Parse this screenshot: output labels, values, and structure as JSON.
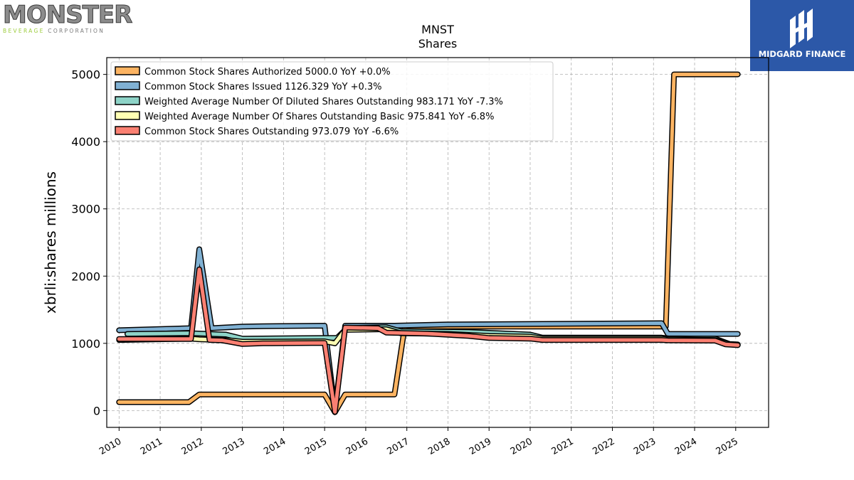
{
  "logos": {
    "left": {
      "word": "MONSTER",
      "sub_accent": "BEVERAGE",
      "sub_rest": " CORPORATION"
    },
    "right": {
      "name": "MIDGARD FINANCE",
      "color": "#2c58a8"
    }
  },
  "chart_data": {
    "type": "line",
    "title": "MNST",
    "subtitle": "Shares",
    "xlabel": "",
    "ylabel": "xbrli:shares millions",
    "xlim": [
      2009.7,
      2025.8
    ],
    "ylim": [
      -250,
      5250
    ],
    "yticks": [
      0,
      1000,
      2000,
      3000,
      4000,
      5000
    ],
    "xticks": [
      "2010",
      "2011",
      "2012",
      "2013",
      "2014",
      "2015",
      "2016",
      "2017",
      "2018",
      "2019",
      "2020",
      "2021",
      "2022",
      "2023",
      "2024",
      "2025"
    ],
    "grid": true,
    "legend_position": "top-left",
    "series": [
      {
        "name": "Common Stock Shares Authorized",
        "legend": "Common Stock Shares Authorized  5000.0 YoY +0.0%",
        "color": "#fdb462",
        "points": [
          [
            2010.0,
            125
          ],
          [
            2011.7,
            125
          ],
          [
            2011.95,
            240
          ],
          [
            2015.0,
            240
          ],
          [
            2015.25,
            -25
          ],
          [
            2015.5,
            240
          ],
          [
            2016.7,
            240
          ],
          [
            2016.95,
            1250
          ],
          [
            2023.2,
            1250
          ],
          [
            2023.3,
            1250
          ],
          [
            2023.5,
            5000
          ],
          [
            2025.05,
            5000
          ]
        ]
      },
      {
        "name": "Common Stock Shares Issued",
        "legend": "Common Stock Shares Issued  1126.329 YoY +0.3%",
        "color": "#80b1d3",
        "points": [
          [
            2010.0,
            1195
          ],
          [
            2011.75,
            1225
          ],
          [
            2011.95,
            2400
          ],
          [
            2012.25,
            1225
          ],
          [
            2013.0,
            1250
          ],
          [
            2013.5,
            1255
          ],
          [
            2015.0,
            1262
          ],
          [
            2015.25,
            0
          ],
          [
            2015.5,
            1262
          ],
          [
            2016.7,
            1262
          ],
          [
            2018.0,
            1280
          ],
          [
            2023.2,
            1300
          ],
          [
            2023.35,
            1140
          ],
          [
            2025.05,
            1140
          ]
        ]
      },
      {
        "name": "Weighted Average Number Of Diluted Shares Outstanding",
        "legend": "Weighted Average Number Of Diluted Shares Outstanding  983.171 YoY -7.3%",
        "color": "#8dd3c7",
        "points": [
          [
            2010.2,
            1140
          ],
          [
            2011.75,
            1150
          ],
          [
            2012.2,
            1140
          ],
          [
            2012.6,
            1130
          ],
          [
            2013.0,
            1070
          ],
          [
            2015.0,
            1080
          ],
          [
            2015.3,
            1080
          ],
          [
            2015.55,
            1230
          ],
          [
            2016.5,
            1240
          ],
          [
            2016.85,
            1180
          ],
          [
            2017.5,
            1175
          ],
          [
            2018.5,
            1170
          ],
          [
            2020.0,
            1130
          ],
          [
            2020.3,
            1085
          ],
          [
            2023.2,
            1085
          ],
          [
            2023.35,
            1075
          ],
          [
            2024.5,
            1070
          ],
          [
            2024.85,
            990
          ],
          [
            2025.05,
            983
          ]
        ]
      },
      {
        "name": "Weighted Average Number Of Shares Outstanding Basic",
        "legend": "Weighted Average Number Of Shares Outstanding Basic  975.841 YoY -6.8%",
        "color": "#ffffb3",
        "points": [
          [
            2010.0,
            1050
          ],
          [
            2011.75,
            1070
          ],
          [
            2011.95,
            1060
          ],
          [
            2012.2,
            1055
          ],
          [
            2012.6,
            1050
          ],
          [
            2013.0,
            1025
          ],
          [
            2015.0,
            1030
          ],
          [
            2015.25,
            1000
          ],
          [
            2015.5,
            1200
          ],
          [
            2016.5,
            1210
          ],
          [
            2016.85,
            1150
          ],
          [
            2018.0,
            1140
          ],
          [
            2019.0,
            1110
          ],
          [
            2020.0,
            1100
          ],
          [
            2020.3,
            1070
          ],
          [
            2023.2,
            1070
          ],
          [
            2023.35,
            1060
          ],
          [
            2024.5,
            1050
          ],
          [
            2024.85,
            985
          ],
          [
            2025.05,
            976
          ]
        ]
      },
      {
        "name": "Common Stock Shares Outstanding",
        "legend": "Common Stock Shares Outstanding  973.079 YoY -6.6%",
        "color": "#fb8072",
        "points": [
          [
            2010.0,
            1065
          ],
          [
            2011.75,
            1065
          ],
          [
            2011.95,
            2100
          ],
          [
            2012.2,
            1050
          ],
          [
            2012.5,
            1045
          ],
          [
            2013.0,
            990
          ],
          [
            2013.5,
            1000
          ],
          [
            2015.0,
            1005
          ],
          [
            2015.25,
            -20
          ],
          [
            2015.5,
            1235
          ],
          [
            2016.3,
            1225
          ],
          [
            2016.5,
            1160
          ],
          [
            2017.5,
            1145
          ],
          [
            2018.5,
            1110
          ],
          [
            2019.0,
            1080
          ],
          [
            2020.0,
            1070
          ],
          [
            2020.3,
            1050
          ],
          [
            2023.2,
            1050
          ],
          [
            2023.35,
            1045
          ],
          [
            2024.5,
            1040
          ],
          [
            2024.75,
            985
          ],
          [
            2025.05,
            973
          ]
        ]
      }
    ]
  }
}
